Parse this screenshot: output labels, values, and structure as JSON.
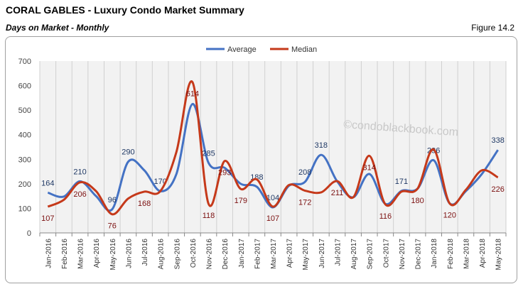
{
  "header": {
    "title": "CORAL GABLES - Luxury Condo Market Summary",
    "subtitle": "Days on Market - Monthly",
    "figure": "Figure 14.2"
  },
  "watermark": "©condoblackbook.com",
  "chart_data": {
    "type": "line",
    "ylim": [
      0,
      700
    ],
    "yticks": [
      0,
      100,
      200,
      300,
      400,
      500,
      600,
      700
    ],
    "grid": "vertical",
    "legend": "top-center",
    "categories": [
      "Jan-2016",
      "Feb-2016",
      "Mar-2016",
      "Apr-2016",
      "May-2016",
      "Jun-2016",
      "Jul-2016",
      "Aug-2016",
      "Sep-2016",
      "Oct-2016",
      "Nov-2016",
      "Dec-2016",
      "Jan-2017",
      "Feb-2017",
      "Mar-2017",
      "Apr-2017",
      "May-2017",
      "Jun-2017",
      "Jul-2017",
      "Aug-2017",
      "Sep-2017",
      "Oct-2017",
      "Nov-2017",
      "Dec-2017",
      "Jan-2018",
      "Feb-2018",
      "Mar-2018",
      "Apr-2018",
      "May-2018"
    ],
    "series": [
      {
        "name": "Average",
        "color": "#4472c4",
        "labelColor": "#1f3864",
        "values": [
          164,
          148,
          210,
          150,
          96,
          290,
          255,
          170,
          240,
          525,
          285,
          265,
          200,
          188,
          104,
          192,
          208,
          318,
          210,
          145,
          240,
          118,
          171,
          180,
          296,
          120,
          170,
          240,
          338
        ],
        "data_labels": [
          164,
          null,
          210,
          null,
          96,
          290,
          null,
          170,
          null,
          null,
          285,
          null,
          null,
          188,
          104,
          null,
          208,
          318,
          null,
          null,
          null,
          null,
          171,
          null,
          296,
          null,
          null,
          null,
          338
        ]
      },
      {
        "name": "Median",
        "color": "#c5391a",
        "labelColor": "#7b1010",
        "values": [
          107,
          135,
          206,
          170,
          76,
          140,
          168,
          170,
          330,
          614,
          118,
          293,
          179,
          218,
          107,
          195,
          172,
          165,
          211,
          145,
          314,
          116,
          168,
          180,
          340,
          120,
          175,
          255,
          226
        ],
        "data_labels": [
          107,
          null,
          206,
          null,
          76,
          null,
          168,
          null,
          null,
          614,
          118,
          293,
          179,
          null,
          107,
          null,
          172,
          null,
          211,
          null,
          314,
          116,
          null,
          180,
          null,
          120,
          null,
          null,
          226
        ]
      }
    ]
  }
}
